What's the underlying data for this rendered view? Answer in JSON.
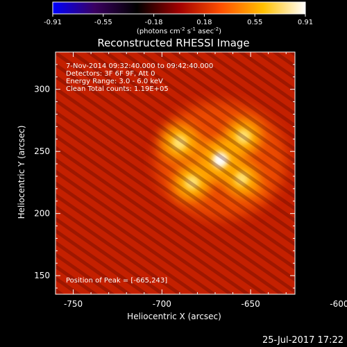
{
  "colorbar": {
    "ticks": [
      "-0.91",
      "-0.55",
      "-0.18",
      "0.18",
      "0.55",
      "0.91"
    ],
    "units": "(photons cm",
    "units_exp1": "-2",
    "units_mid": " s",
    "units_exp2": "-1",
    "units_tail": " asec",
    "units_exp3": "-2",
    "units_close": ")"
  },
  "chart_data": {
    "type": "heatmap",
    "title": "Reconstructed RHESSI Image",
    "xlabel": "Heliocentric X (arcsec)",
    "ylabel": "Heliocentric Y (arcsec)",
    "xlim": [
      -760,
      -625
    ],
    "ylim": [
      135,
      330
    ],
    "xticks": [
      -750,
      -700,
      -650,
      -600
    ],
    "yticks": [
      150,
      200,
      250,
      300
    ],
    "value_range": [
      -0.91,
      0.91
    ],
    "colormap": [
      "#0000ff",
      "#3a0060",
      "#000000",
      "#a00000",
      "#ff5000",
      "#ffc000",
      "#ffffff"
    ],
    "sources": [
      {
        "x": -667,
        "y": 243,
        "value": 0.91
      },
      {
        "x": -690,
        "y": 257,
        "value": 0.78
      },
      {
        "x": -654,
        "y": 262,
        "value": 0.72
      },
      {
        "x": -683,
        "y": 225,
        "value": 0.7
      },
      {
        "x": -655,
        "y": 228,
        "value": 0.62
      }
    ],
    "annotations": [
      "7-Nov-2014 09:32:40.000 to 09:42:40.000",
      "Detectors: 3F 6F 9F, Att 0",
      "Energy Range: 3.0 - 6.0 keV",
      "Clean     Total counts: 1.19E+05"
    ],
    "peak_label": "Position of Peak = [-665,243]"
  },
  "footer": {
    "date": "25-Jul-2017 17:22"
  }
}
